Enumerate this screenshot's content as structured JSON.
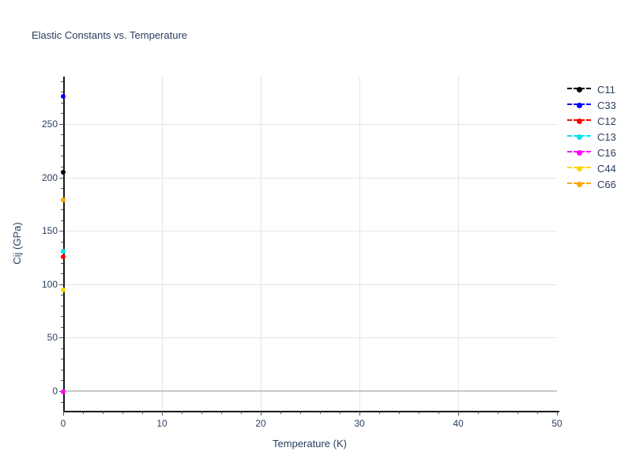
{
  "title": "Elastic Constants vs. Temperature",
  "text_color": "#2a3f5f",
  "chart_data": {
    "type": "scatter",
    "title": "Elastic Constants vs. Temperature",
    "xlabel": "Temperature (K)",
    "ylabel": "Cij (GPa)",
    "xlim": [
      0,
      50
    ],
    "ylim": [
      -18.5,
      294.3
    ],
    "x_major_ticks": [
      0,
      10,
      20,
      30,
      40,
      50
    ],
    "x_minor_step": 2,
    "y_major_ticks": [
      0,
      50,
      100,
      150,
      200,
      250
    ],
    "y_minor_step": 10,
    "x_gridlines": [
      10,
      20,
      30,
      40
    ],
    "y_gridlines": [
      50,
      100,
      150,
      200,
      250
    ],
    "zero_line_y": 0,
    "grid": true,
    "legend_position": "top-right",
    "marker_style": "circle",
    "line_style": "dash",
    "grid_color": "#e5e5e5",
    "zero_line_color": "#c9c9c9",
    "series": [
      {
        "name": "C11",
        "color": "#000000",
        "x": [
          0
        ],
        "y": [
          205
        ]
      },
      {
        "name": "C33",
        "color": "#0000ff",
        "x": [
          0
        ],
        "y": [
          276
        ]
      },
      {
        "name": "C12",
        "color": "#ff0000",
        "x": [
          0
        ],
        "y": [
          126
        ]
      },
      {
        "name": "C13",
        "color": "#00e5ee",
        "x": [
          0
        ],
        "y": [
          131
        ]
      },
      {
        "name": "C16",
        "color": "#ff00ff",
        "x": [
          0
        ],
        "y": [
          -1
        ]
      },
      {
        "name": "C44",
        "color": "#ffd700",
        "x": [
          0
        ],
        "y": [
          95
        ]
      },
      {
        "name": "C66",
        "color": "#ffa500",
        "x": [
          0
        ],
        "y": [
          179
        ]
      }
    ]
  }
}
